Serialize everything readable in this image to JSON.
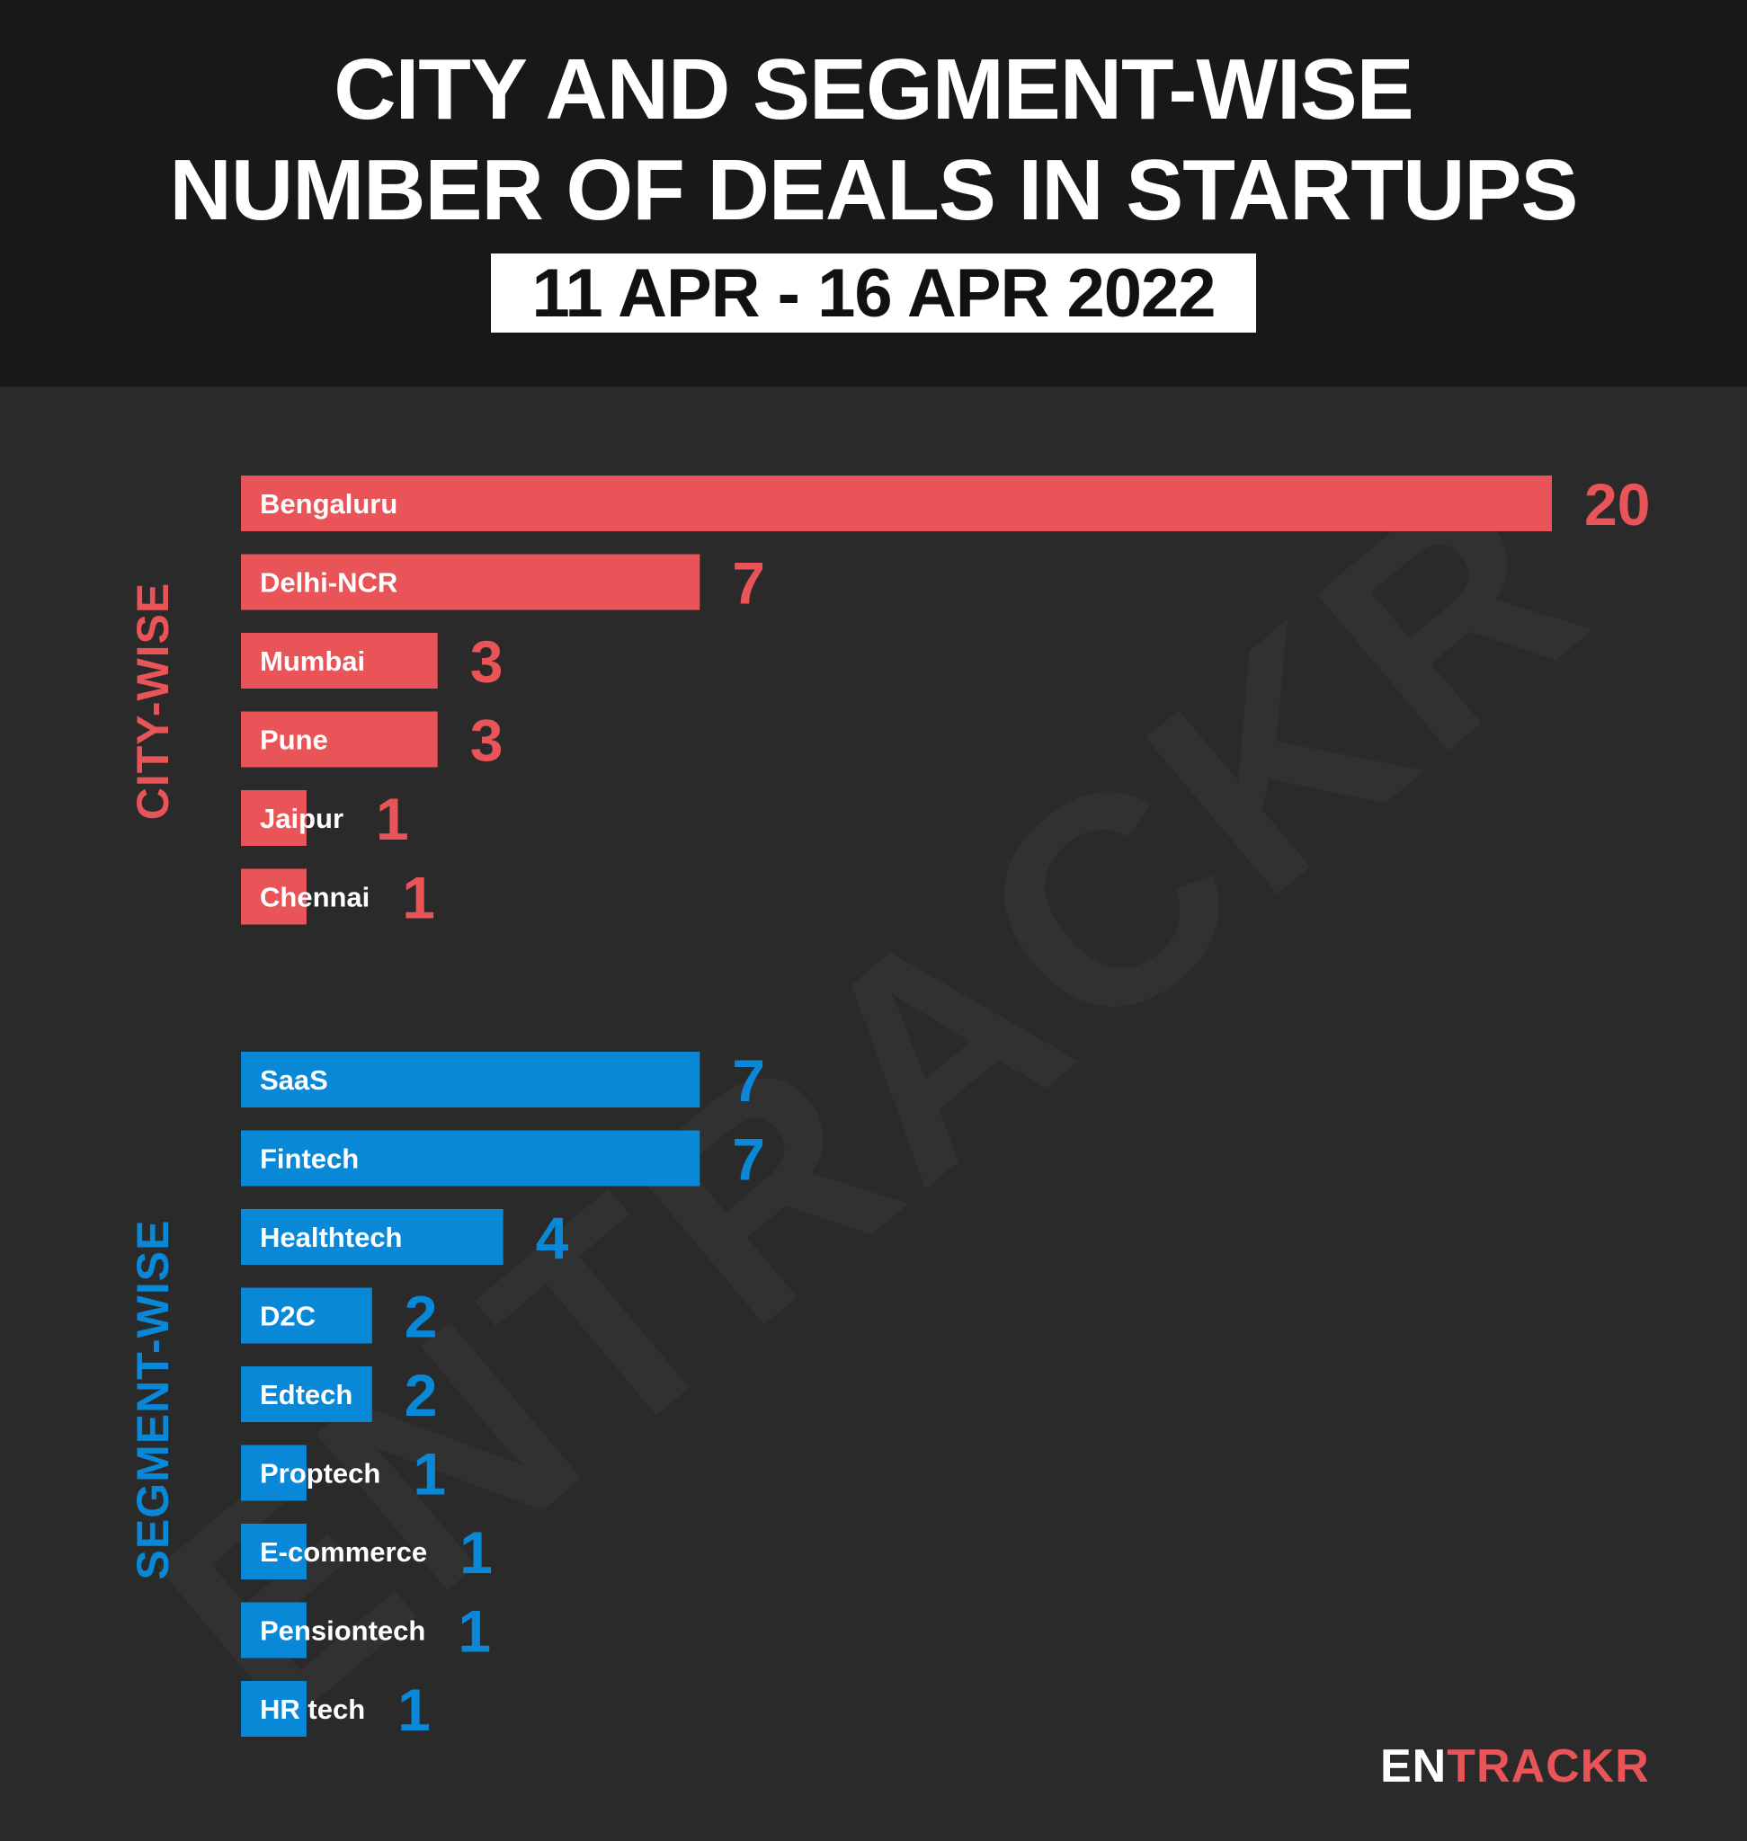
{
  "header": {
    "title_line1": "CITY AND SEGMENT-WISE",
    "title_line2": "NUMBER OF DEALS IN STARTUPS",
    "date_range": "11 APR - 16 APR 2022"
  },
  "watermark": "ENTRACKR",
  "logo": {
    "part1": "EN",
    "part2": "TRACKR"
  },
  "colors": {
    "city": "#e85457",
    "segment": "#0a88d8",
    "background": "#2a2a2a",
    "header": "#181818"
  },
  "chart_data": [
    {
      "type": "bar",
      "orientation": "horizontal",
      "title": "CITY-WISE",
      "color": "#e85457",
      "categories": [
        "Bengaluru",
        "Delhi-NCR",
        "Mumbai",
        "Pune",
        "Jaipur",
        "Chennai"
      ],
      "values": [
        20,
        7,
        3,
        3,
        1,
        1
      ]
    },
    {
      "type": "bar",
      "orientation": "horizontal",
      "title": "SEGMENT-WISE",
      "color": "#0a88d8",
      "categories": [
        "SaaS",
        "Fintech",
        "Healthtech",
        "D2C",
        "Edtech",
        "Proptech",
        "E-commerce",
        "Pensiontech",
        "HR tech"
      ],
      "values": [
        7,
        7,
        4,
        2,
        2,
        1,
        1,
        1,
        1
      ]
    }
  ]
}
